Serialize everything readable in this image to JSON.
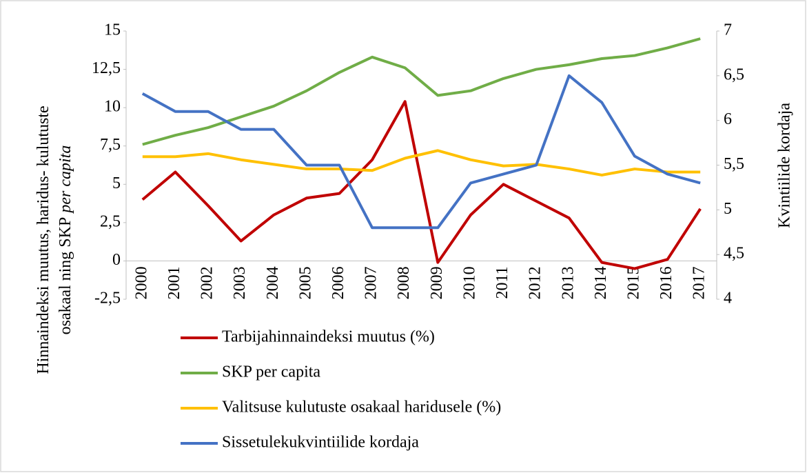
{
  "chart_data": {
    "type": "line",
    "y_label_lines": [
      "Hinnaindeksi muutus, haridus- kulutuste",
      "osakaal ning SKP"
    ],
    "y_label_italic": "per capita",
    "y2_label": "Kvintiilide kordaja",
    "categories": [
      "2000",
      "2001",
      "2002",
      "2003",
      "2004",
      "2005",
      "2006",
      "2007",
      "2008",
      "2009",
      "2010",
      "2011",
      "2012",
      "2013",
      "2014",
      "2015",
      "2016",
      "2017"
    ],
    "series": [
      {
        "name": "Tarbijahinnaindeksi muutus (%)",
        "color": "#c00000",
        "values": [
          4.0,
          5.8,
          3.6,
          1.3,
          3.0,
          4.1,
          4.4,
          6.6,
          10.4,
          -0.1,
          3.0,
          5.0,
          3.9,
          2.8,
          -0.1,
          -0.5,
          0.1,
          3.4
        ]
      },
      {
        "name": "SKP per capita",
        "color": "#70ad47",
        "values": [
          7.6,
          8.2,
          8.7,
          9.4,
          10.1,
          11.1,
          12.3,
          13.3,
          12.6,
          10.8,
          11.1,
          11.9,
          12.5,
          12.8,
          13.2,
          13.4,
          13.9,
          14.5
        ]
      },
      {
        "name": "Valitsuse kulutuste osakaal haridusele (%)",
        "color": "#ffc000",
        "values": [
          6.8,
          6.8,
          7.0,
          6.6,
          6.3,
          6.0,
          6.0,
          5.9,
          6.7,
          7.2,
          6.6,
          6.2,
          6.3,
          6.0,
          5.6,
          6.0,
          5.8,
          5.8
        ]
      },
      {
        "name": "Sissetulekukvintiilide kordaja",
        "color": "#4472c4",
        "axis": "y2",
        "values": [
          6.3,
          6.1,
          6.1,
          5.9,
          5.9,
          5.5,
          5.5,
          4.8,
          4.8,
          4.8,
          5.3,
          5.4,
          5.5,
          6.5,
          6.2,
          5.6,
          5.4,
          5.3
        ]
      }
    ],
    "ylim": [
      -2.5,
      15
    ],
    "yticks": [
      {
        "value": -2.5,
        "label": "-2,5"
      },
      0,
      {
        "value": 2.5,
        "label": "2,5"
      },
      5,
      {
        "value": 7.5,
        "label": "7,5"
      },
      10,
      {
        "value": 12.5,
        "label": "12,5"
      },
      15
    ],
    "y2lim": [
      4,
      7
    ],
    "y2ticks": [
      4,
      {
        "value": 4.5,
        "label": "4,5"
      },
      5,
      {
        "value": 5.5,
        "label": "5,5"
      },
      6,
      {
        "value": 6.5,
        "label": "6,5"
      },
      7
    ],
    "grid": false,
    "legend": "bottom"
  }
}
